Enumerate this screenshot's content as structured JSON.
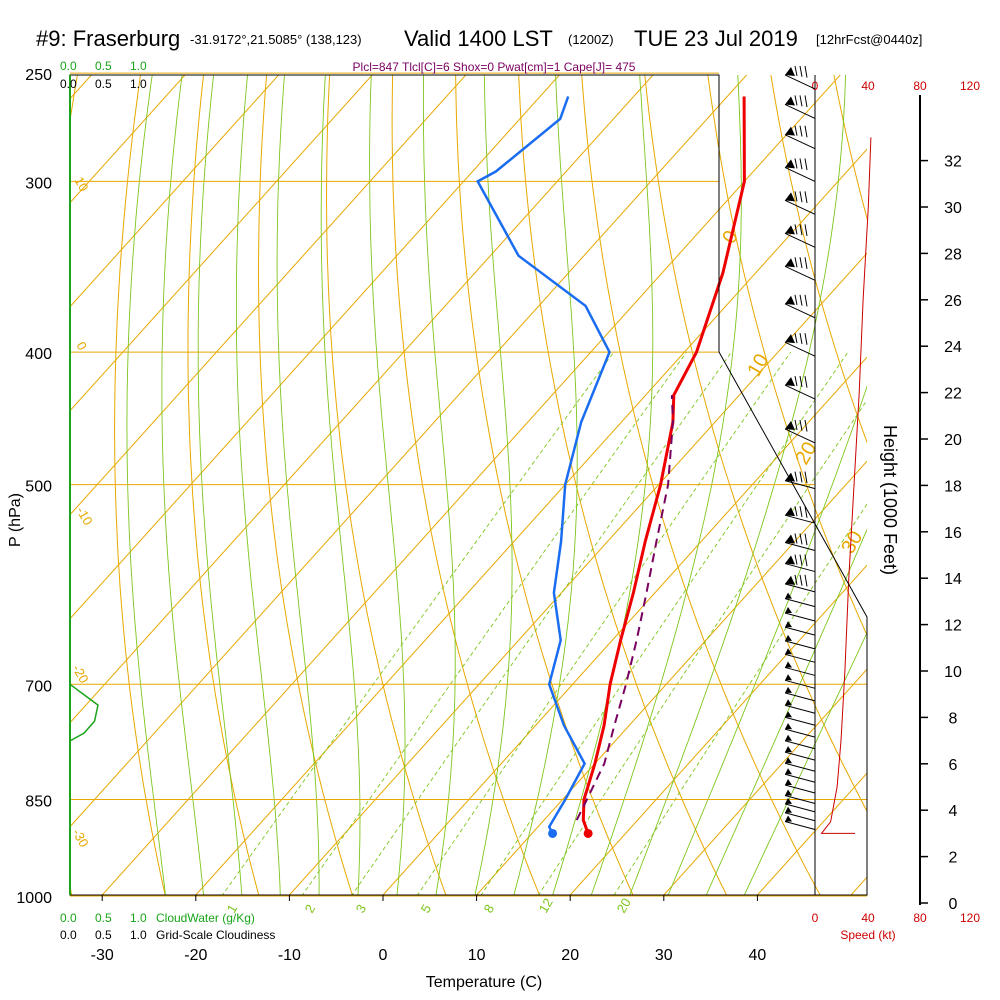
{
  "title": {
    "station": "#9: Fraserburg",
    "coords": "-31.9172°,21.5085° (138,123)",
    "valid": "Valid 1400 LST",
    "utc": "(1200Z)",
    "date": "TUE 23 Jul 2019",
    "forecast": "[12hrFcst@0440z]"
  },
  "indices": "Plcl=847 Tlcl[C]=6 Shox=0 Pwat[cm]=1 Cape[J]= 475",
  "colors": {
    "isotherm": "#e8a800",
    "isobar": "#e8a800",
    "dry_adiabat": "#e8a800",
    "moist_adiabat": "#7dc61c",
    "mixing_ratio": "#7dc61c",
    "temperature": "#ee0000",
    "dewpoint": "#1a6cf0",
    "parcel": "#7a0060",
    "cloud_water": "#1aa51a",
    "wind_speed": "#cc0000"
  },
  "chart_data": {
    "type": "skew-t sounding",
    "xlabel": "Temperature (C)",
    "ylabel": "P (hPa)",
    "y2label": "Height (1000 Feet)",
    "pressure_ticks": [
      250,
      300,
      400,
      500,
      700,
      850,
      1000
    ],
    "temperature_ticks": [
      -30,
      -20,
      -10,
      0,
      10,
      20,
      30,
      40
    ],
    "height_ticks": [
      0,
      2,
      4,
      6,
      8,
      10,
      12,
      14,
      16,
      18,
      20,
      22,
      24,
      26,
      28,
      30,
      32
    ],
    "wind_speed_ticks": [
      0,
      40,
      80,
      120
    ],
    "wind_speed_label": "Speed (kt)",
    "top_scales": {
      "cloud_water": [
        "0.0",
        "0.5",
        "1.0"
      ],
      "cloudiness": [
        "0.0",
        "0.5",
        "1.0"
      ]
    },
    "bottom_scales": {
      "cloud_water": [
        "0.0",
        "0.5",
        "1.0"
      ],
      "cloud_water_label": "CloudWater (g/Kg)",
      "cloudiness": [
        "0.0",
        "0.5",
        "1.0"
      ],
      "cloudiness_label": "Grid-Scale Cloudiness"
    },
    "mixing_ratio_labels": [
      "1",
      "2",
      "3",
      "5",
      "8",
      "12",
      "20"
    ],
    "theta_e_labels": [
      "0",
      "10",
      "20",
      "30"
    ],
    "dry_adiabat_labels": [
      "10",
      "0",
      "-10",
      "-20",
      "-30"
    ],
    "series": [
      {
        "name": "temperature",
        "points": [
          {
            "p": 900,
            "t": 16.0
          },
          {
            "p": 880,
            "t": 14.2
          },
          {
            "p": 850,
            "t": 12.3
          },
          {
            "p": 800,
            "t": 10.0
          },
          {
            "p": 750,
            "t": 7.3
          },
          {
            "p": 700,
            "t": 4.0
          },
          {
            "p": 650,
            "t": 0.9
          },
          {
            "p": 600,
            "t": -2.3
          },
          {
            "p": 550,
            "t": -6.0
          },
          {
            "p": 500,
            "t": -9.8
          },
          {
            "p": 450,
            "t": -14.5
          },
          {
            "p": 430,
            "t": -17.0
          },
          {
            "p": 400,
            "t": -18.7
          },
          {
            "p": 350,
            "t": -23.5
          },
          {
            "p": 300,
            "t": -30.0
          },
          {
            "p": 260,
            "t": -38.2
          }
        ]
      },
      {
        "name": "dewpoint",
        "points": [
          {
            "p": 900,
            "t": 12.2
          },
          {
            "p": 890,
            "t": 11.2
          },
          {
            "p": 850,
            "t": 10.3
          },
          {
            "p": 800,
            "t": 8.9
          },
          {
            "p": 750,
            "t": 3.0
          },
          {
            "p": 700,
            "t": -2.5
          },
          {
            "p": 650,
            "t": -5.5
          },
          {
            "p": 600,
            "t": -10.8
          },
          {
            "p": 550,
            "t": -15.0
          },
          {
            "p": 500,
            "t": -20.0
          },
          {
            "p": 450,
            "t": -24.3
          },
          {
            "p": 400,
            "t": -28.0
          },
          {
            "p": 370,
            "t": -35.0
          },
          {
            "p": 340,
            "t": -47.0
          },
          {
            "p": 300,
            "t": -58.5
          },
          {
            "p": 295,
            "t": -57.5
          },
          {
            "p": 270,
            "t": -55.7
          },
          {
            "p": 260,
            "t": -57.0
          }
        ]
      },
      {
        "name": "parcel",
        "points": [
          {
            "p": 880,
            "t": 13.5
          },
          {
            "p": 850,
            "t": 12.6
          },
          {
            "p": 800,
            "t": 11.0
          },
          {
            "p": 750,
            "t": 8.4
          },
          {
            "p": 700,
            "t": 5.7
          },
          {
            "p": 650,
            "t": 2.6
          },
          {
            "p": 600,
            "t": -0.9
          },
          {
            "p": 550,
            "t": -4.8
          },
          {
            "p": 500,
            "t": -9.0
          },
          {
            "p": 450,
            "t": -14.5
          },
          {
            "p": 430,
            "t": -17.2
          }
        ]
      }
    ],
    "wind_speed_profile": [
      {
        "kft": 3.0,
        "kt": 5
      },
      {
        "kft": 3.5,
        "kt": 12
      },
      {
        "kft": 5.0,
        "kt": 17
      },
      {
        "kft": 7.0,
        "kt": 20
      },
      {
        "kft": 10.0,
        "kt": 23
      },
      {
        "kft": 14.0,
        "kt": 26
      },
      {
        "kft": 18.0,
        "kt": 30
      },
      {
        "kft": 22.0,
        "kt": 34
      },
      {
        "kft": 26.0,
        "kt": 37
      },
      {
        "kft": 30.0,
        "kt": 41
      },
      {
        "kft": 33.0,
        "kt": 43
      }
    ],
    "cloud_water_profile": [
      {
        "p": 700,
        "q": 0.0
      },
      {
        "p": 725,
        "q": 0.4
      },
      {
        "p": 745,
        "q": 0.35
      },
      {
        "p": 760,
        "q": 0.2
      },
      {
        "p": 770,
        "q": 0.0
      }
    ]
  }
}
